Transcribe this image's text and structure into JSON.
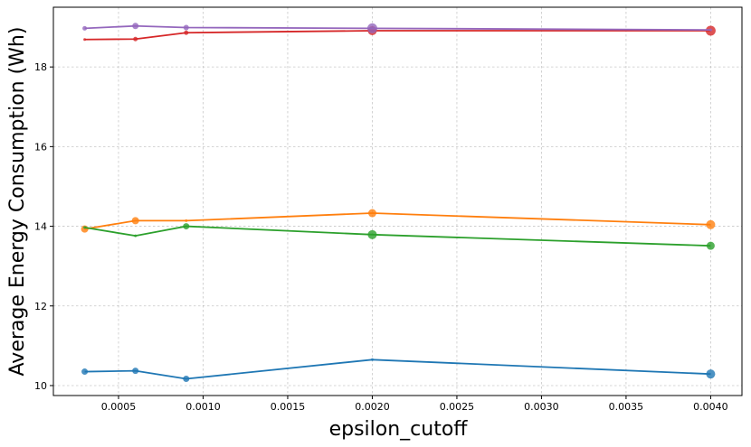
{
  "chart_data": {
    "type": "line",
    "xlabel": "epsilon_cutoff",
    "ylabel": "Average Energy Consumption (Wh)",
    "xlim": [
      0.000115,
      0.004185
    ],
    "ylim": [
      9.75,
      19.5
    ],
    "xticks": [
      0.0005,
      0.001,
      0.0015,
      0.002,
      0.0025,
      0.003,
      0.0035,
      0.004
    ],
    "xtick_labels": [
      "0.0005",
      "0.0010",
      "0.0015",
      "0.0020",
      "0.0025",
      "0.0030",
      "0.0035",
      "0.0040"
    ],
    "yticks": [
      10,
      12,
      14,
      16,
      18
    ],
    "ytick_labels": [
      "10",
      "12",
      "14",
      "16",
      "18"
    ],
    "grid": true,
    "x": [
      0.0003,
      0.0006,
      0.0009,
      0.002,
      0.004
    ],
    "series": [
      {
        "color": "#1f77b4",
        "values": [
          10.35,
          10.37,
          10.17,
          10.65,
          10.29
        ],
        "marker_sizes": [
          7,
          7,
          7,
          3,
          10
        ]
      },
      {
        "color": "#ff7f0e",
        "values": [
          13.93,
          14.14,
          14.14,
          14.33,
          14.04
        ],
        "marker_sizes": [
          8,
          8,
          3,
          9,
          10
        ]
      },
      {
        "color": "#2ca02c",
        "values": [
          13.97,
          13.76,
          14.0,
          13.79,
          13.51
        ],
        "marker_sizes": [
          3,
          3,
          7,
          10,
          9
        ]
      },
      {
        "color": "#d62728",
        "values": [
          18.69,
          18.7,
          18.86,
          18.91,
          18.91
        ],
        "marker_sizes": [
          3,
          5,
          5,
          10,
          11
        ]
      },
      {
        "color": "#9467bd",
        "values": [
          18.97,
          19.03,
          18.99,
          18.97,
          18.93
        ],
        "marker_sizes": [
          5,
          7,
          6,
          11,
          3
        ]
      }
    ]
  }
}
